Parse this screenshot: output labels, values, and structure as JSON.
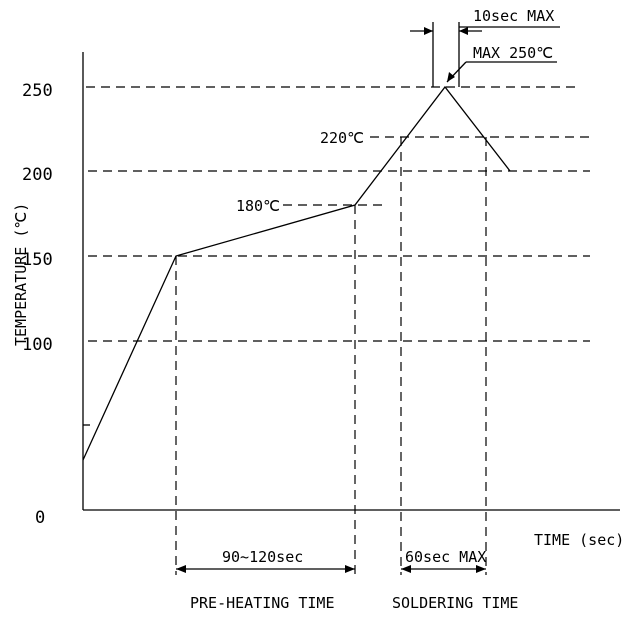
{
  "chart_data": {
    "type": "line",
    "xlabel": "TIME (sec)",
    "ylabel": "TEMPERATURE (℃)",
    "y_ticks": [
      "0",
      "100",
      "150",
      "200",
      "250"
    ],
    "profile_labels": {
      "peak": "MAX 250℃",
      "t220": "220℃",
      "t180": "180℃"
    },
    "dimensions": {
      "peak_time": "10sec MAX",
      "preheat": "90~120sec",
      "soldering": "60sec MAX"
    },
    "phase_labels": {
      "preheat": "PRE-HEATING TIME",
      "soldering": "SOLDERING TIME"
    }
  }
}
